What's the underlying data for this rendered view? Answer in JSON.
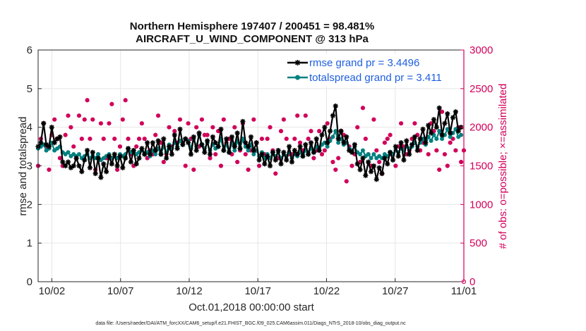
{
  "chart_data": {
    "type": "line",
    "title": "Northern Hemisphere 197407 / 200451 = 98.481%",
    "subtitle": "AIRCRAFT_U_WIND_COMPONENT @ 313 hPa",
    "xlabel": "Oct.01,2018 00:00:00 start",
    "ylabel": "rmse and totalspread",
    "y2label": "# of obs: o=possible; ×=assimilated",
    "xlim": [
      1,
      32
    ],
    "ylim": [
      0,
      6
    ],
    "y2lim": [
      0,
      3000
    ],
    "x_ticks": [
      2,
      7,
      12,
      17,
      22,
      27,
      32
    ],
    "x_tick_labels": [
      "10/02",
      "10/07",
      "10/12",
      "10/17",
      "10/22",
      "10/27",
      "11/01"
    ],
    "y_ticks": [
      0,
      1,
      2,
      3,
      4,
      5,
      6
    ],
    "y2_ticks": [
      0,
      500,
      1000,
      1500,
      2000,
      2500,
      3000
    ],
    "grid": true,
    "legend_position": "top-right",
    "footnote": "data file: /Users/raeder/DAI/ATM_forcXX/CAM6_setup/f.e21.FHIST_BGC.f09_025.CAM6assim.011/Diags_NTrS_2018-10/obs_diag_output.nc",
    "colors": {
      "rmse": "#000000",
      "spread": "#008080",
      "obs": "#d1005a",
      "grid": "#e6e6e6"
    },
    "series": [
      {
        "name": "rmse grand pr = 3.4496",
        "marker": "asterisk",
        "values": [
          3.5,
          3.6,
          4.1,
          3.55,
          3.5,
          4.0,
          3.6,
          3.7,
          3.75,
          3.1,
          3.0,
          3.1,
          2.95,
          3.0,
          3.2,
          3.0,
          2.85,
          3.15,
          3.4,
          2.95,
          3.35,
          2.8,
          3.2,
          2.7,
          3.05,
          2.85,
          3.25,
          3.05,
          3.3,
          3.0,
          3.25,
          2.95,
          3.2,
          3.45,
          3.1,
          3.4,
          3.05,
          3.2,
          3.45,
          3.3,
          3.6,
          3.3,
          3.6,
          3.4,
          3.65,
          3.3,
          3.7,
          3.2,
          3.5,
          3.3,
          3.8,
          3.45,
          3.95,
          3.55,
          3.7,
          3.6,
          3.3,
          3.75,
          3.4,
          3.85,
          3.55,
          3.35,
          3.65,
          3.3,
          3.75,
          3.6,
          3.5,
          3.95,
          3.4,
          3.7,
          3.35,
          3.75,
          3.5,
          3.85,
          3.45,
          4.15,
          3.6,
          3.5,
          3.75,
          3.4,
          3.6,
          3.15,
          3.3,
          3.05,
          3.25,
          3.0,
          3.35,
          3.15,
          3.4,
          3.05,
          3.35,
          3.15,
          3.5,
          3.1,
          3.4,
          3.3,
          3.5,
          3.25,
          3.55,
          3.3,
          3.6,
          3.35,
          3.7,
          3.4,
          3.8,
          4.0,
          3.6,
          3.9,
          4.3,
          4.55,
          3.7,
          3.9,
          3.6,
          3.75,
          3.4,
          3.35,
          3.55,
          3.05,
          2.9,
          3.2,
          2.75,
          3.1,
          2.85,
          3.0,
          2.65,
          2.95,
          2.8,
          3.2,
          3.05,
          3.35,
          3.15,
          3.5,
          3.25,
          3.6,
          3.15,
          3.65,
          3.3,
          3.55,
          3.75,
          3.4,
          3.7,
          3.95,
          3.6,
          4.05,
          3.85,
          4.2,
          4.0,
          4.5,
          3.8,
          4.1,
          4.35,
          3.85,
          4.25,
          4.4,
          3.9,
          4.0
        ]
      },
      {
        "name": "totalspread grand pr = 3.411",
        "marker": "circle",
        "values": [
          3.45,
          3.5,
          3.55,
          3.4,
          3.45,
          3.6,
          3.4,
          3.45,
          3.5,
          3.35,
          3.3,
          3.35,
          3.25,
          3.3,
          3.25,
          3.3,
          3.2,
          3.25,
          3.3,
          3.2,
          3.25,
          3.2,
          3.3,
          3.15,
          3.2,
          3.25,
          3.3,
          3.2,
          3.25,
          3.2,
          3.3,
          3.25,
          3.3,
          3.45,
          3.35,
          3.4,
          3.3,
          3.35,
          3.4,
          3.3,
          3.35,
          3.25,
          3.4,
          3.3,
          3.45,
          3.3,
          3.5,
          3.35,
          3.55,
          3.45,
          3.6,
          3.5,
          3.65,
          3.55,
          3.7,
          3.65,
          3.45,
          3.7,
          3.5,
          3.8,
          3.55,
          3.45,
          3.6,
          3.4,
          3.55,
          3.45,
          3.5,
          3.7,
          3.4,
          3.55,
          3.35,
          3.6,
          3.4,
          3.65,
          3.45,
          3.7,
          3.5,
          3.4,
          3.55,
          3.3,
          3.4,
          3.25,
          3.35,
          3.2,
          3.3,
          3.2,
          3.35,
          3.25,
          3.35,
          3.2,
          3.3,
          3.25,
          3.35,
          3.2,
          3.3,
          3.25,
          3.35,
          3.25,
          3.4,
          3.3,
          3.45,
          3.35,
          3.5,
          3.4,
          3.55,
          3.6,
          3.5,
          3.65,
          3.75,
          3.9,
          3.6,
          3.7,
          3.55,
          3.6,
          3.45,
          3.4,
          3.5,
          3.35,
          3.3,
          3.4,
          3.25,
          3.3,
          3.2,
          3.3,
          3.2,
          3.25,
          3.2,
          3.3,
          3.25,
          3.35,
          3.3,
          3.4,
          3.35,
          3.45,
          3.4,
          3.5,
          3.45,
          3.5,
          3.6,
          3.5,
          3.6,
          3.7,
          3.55,
          3.75,
          3.65,
          3.8,
          3.7,
          3.9,
          3.7,
          3.8,
          3.95,
          3.75,
          3.85,
          3.95,
          3.75,
          3.8
        ]
      }
    ],
    "obs_possible": [
      1500,
      1850,
      2050,
      1750,
      1450,
      1900,
      2100,
      1850,
      1600,
      1500,
      1900,
      2150,
      2000,
      1750,
      1600,
      2150,
      1850,
      2100,
      2350,
      1850,
      2100,
      1450,
      1650,
      2050,
      1850,
      1600,
      2050,
      2300,
      1850,
      1450,
      1750,
      2100,
      2350,
      1850,
      1650,
      1500,
      1750,
      1850,
      2050,
      1850,
      1600,
      1700,
      1650,
      1900,
      2150,
      1800,
      1550,
      1650,
      2000,
      1750,
      1950,
      1800,
      2100,
      1800,
      1500,
      2050,
      1850,
      1450,
      2000,
      1750,
      2100,
      1900,
      1900,
      1600,
      2000,
      1650,
      1950,
      1500,
      2100,
      1800,
      1850,
      1650,
      2000,
      1550,
      1700,
      2050,
      1650,
      1450,
      1700,
      2100,
      1800,
      1500,
      1850,
      1650,
      1850,
      2000,
      1700,
      1400,
      1600,
      1950,
      2100,
      1850,
      1650,
      1650,
      1850,
      2150,
      1800,
      1700,
      2150,
      1850,
      1950,
      1600,
      1700,
      1950,
      1650,
      1700,
      2050,
      1850,
      1550,
      1450,
      1600,
      1950,
      1900,
      1300,
      1750,
      1500,
      1650,
      2000,
      1550,
      2250,
      1850,
      1650,
      1500,
      2100,
      1700,
      1550,
      1400,
      1800,
      1850,
      1900,
      1650,
      1500,
      1750,
      2050,
      1750,
      1650,
      1700,
      1850,
      2050,
      1900,
      1700,
      1800,
      1850,
      1650,
      2050,
      1950,
      1700,
      1450,
      2200,
      1650,
      1500,
      1800,
      1850,
      1700,
      2000,
      1550,
      1700
    ]
  }
}
